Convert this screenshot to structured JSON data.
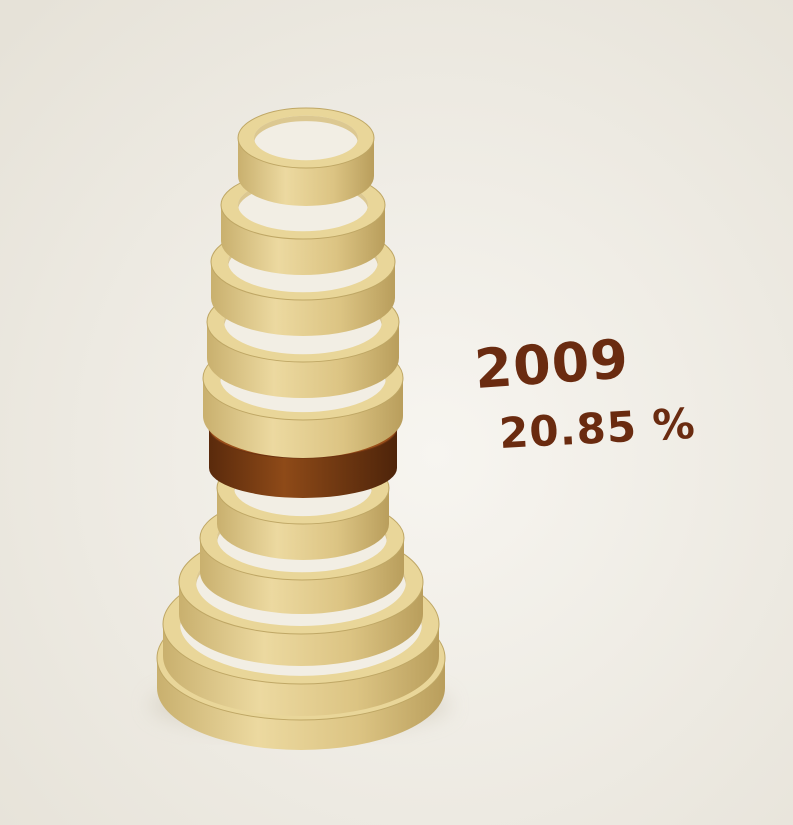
{
  "chart_data": {
    "type": "3d-ring-stack",
    "rings": 11,
    "highlighted_ring_index": 5,
    "year": "2009",
    "value_label": "20.85 %",
    "value": 20.85
  },
  "colors": {
    "background_light": "#f6f4ef",
    "background_dark": "#e9e5dc",
    "ring_face": "#e9d699",
    "ring_side": "#d8c17f",
    "ring_shadow": "#bfa765",
    "highlight_face": "#9a4f1a",
    "highlight_side": "#6b3210",
    "text": "#6a2b10"
  }
}
